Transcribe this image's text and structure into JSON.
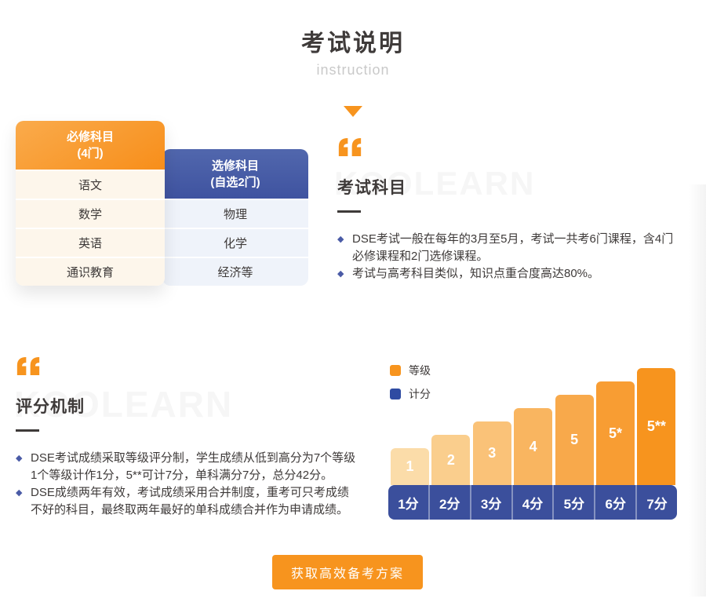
{
  "header": {
    "title": "考试说明",
    "subtitle": "instruction"
  },
  "tables": {
    "required": {
      "title_line1": "必修科目",
      "title_line2": "(4门)",
      "rows": [
        "语文",
        "数学",
        "英语",
        "通识教育"
      ]
    },
    "elective": {
      "title_line1": "选修科目",
      "title_line2": "(自选2门)",
      "rows": [
        "物理",
        "化学",
        "经济等"
      ]
    }
  },
  "exam_section": {
    "heading": "考试科目",
    "watermark": "KOOLEARN",
    "bullets": [
      {
        "lines": [
          "DSE考试一般在每年的3月至5月，考试一共考6门课程，含4门",
          "必修课程和2门选修课程。"
        ]
      },
      {
        "lines": [
          "考试与高考科目类似，知识点重合度高达80%。"
        ]
      }
    ]
  },
  "scoring_section": {
    "heading": "评分机制",
    "watermark": "KOOLEARN",
    "bullets": [
      {
        "lines": [
          "DSE考试成绩采取等级评分制，学生成绩从低到高分为7个等级",
          "1个等级计作1分，5**可计7分，单科满分7分，总分42分。"
        ]
      },
      {
        "lines": [
          "DSE成绩两年有效，考试成绩采用合并制度，重考可只考成绩",
          "不好的科目，最终取两年最好的单科成绩合并作为申请成绩。"
        ]
      }
    ]
  },
  "chart_data": {
    "type": "bar",
    "title": "",
    "legend": [
      {
        "label": "等级",
        "color": "#F7941E"
      },
      {
        "label": "计分",
        "color": "#2F4BA2"
      }
    ],
    "grade_labels": [
      "1",
      "2",
      "3",
      "4",
      "5",
      "5*",
      "5**"
    ],
    "values": [
      1,
      2,
      3,
      4,
      5,
      6,
      7
    ],
    "score_labels": [
      "1分",
      "2分",
      "3分",
      "4分",
      "5分",
      "6分",
      "7分"
    ],
    "bar_colors": [
      "#FBDCA9",
      "#FACE8D",
      "#FAC278",
      "#F9B560",
      "#F8A94B",
      "#F89D33",
      "#F7941E"
    ],
    "band_color": "#3B4F9C",
    "ylim": [
      0,
      7
    ],
    "legend_position": "top-left",
    "grid": false
  },
  "cta": {
    "label": "获取高效备考方案"
  },
  "colors": {
    "accent": "#F7941E",
    "blue": "#3B4F9C"
  }
}
